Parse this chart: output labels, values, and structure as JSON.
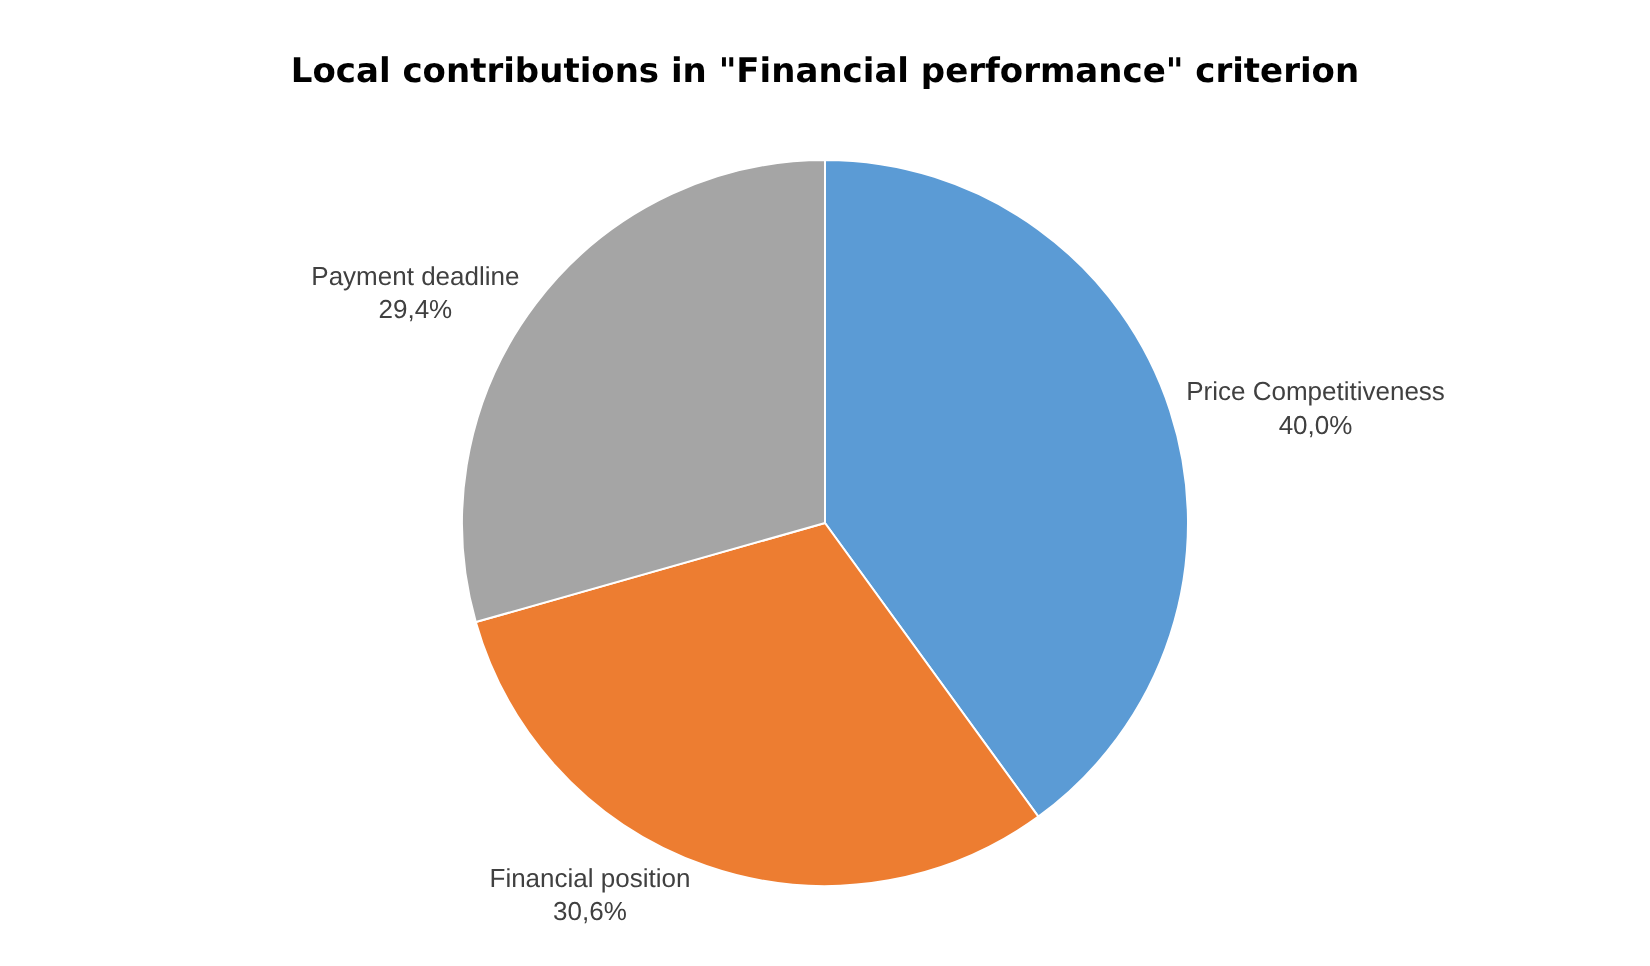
{
  "chart_data": {
    "type": "pie",
    "title": "Local contributions in \"Financial performance\" criterion",
    "categories": [
      "Price Competitiveness",
      "Financial position",
      "Payment deadline"
    ],
    "values": [
      40.0,
      30.6,
      29.4
    ],
    "value_labels": [
      "40,0%",
      "30,6%",
      "29,4%"
    ],
    "colors": [
      "#5b9bd5",
      "#ed7d31",
      "#a5a5a5"
    ],
    "legend": false
  }
}
